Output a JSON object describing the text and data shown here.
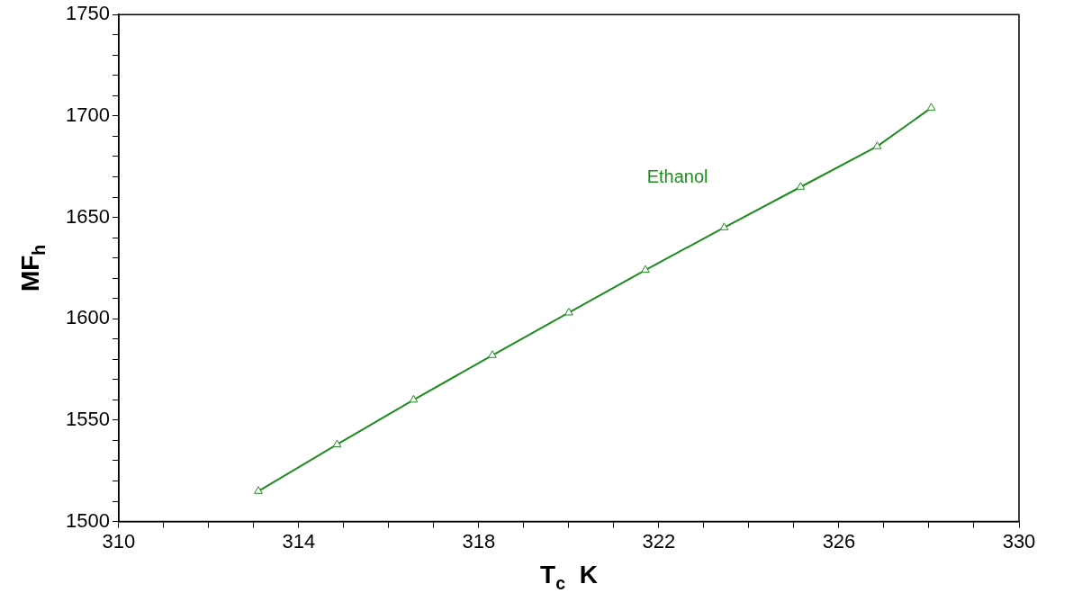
{
  "chart_data": {
    "type": "line",
    "xlabel": "T$_{c}$  K",
    "ylabel": "MF$_{h}$",
    "xlim": [
      310,
      330
    ],
    "xticks": [
      310,
      {
        "value": 311,
        "label": null
      },
      {
        "value": 312,
        "label": null
      },
      {
        "value": 313,
        "label": null
      },
      314,
      {
        "value": 315,
        "label": null
      },
      {
        "value": 316,
        "label": null
      },
      {
        "value": 317,
        "label": null
      },
      318,
      {
        "value": 319,
        "label": null
      },
      {
        "value": 320,
        "label": null
      },
      {
        "value": 321,
        "label": null
      },
      322,
      {
        "value": 323,
        "label": null
      },
      {
        "value": 324,
        "label": null
      },
      {
        "value": 325,
        "label": null
      },
      326,
      {
        "value": 327,
        "label": null
      },
      {
        "value": 328,
        "label": null
      },
      {
        "value": 329,
        "label": null
      },
      330
    ],
    "ylim": [
      1500,
      1750
    ],
    "yticks": [
      1500,
      {
        "value": 1510,
        "label": null
      },
      {
        "value": 1520,
        "label": null
      },
      {
        "value": 1530,
        "label": null
      },
      {
        "value": 1540,
        "label": null
      },
      1550,
      {
        "value": 1560,
        "label": null
      },
      {
        "value": 1570,
        "label": null
      },
      {
        "value": 1580,
        "label": null
      },
      {
        "value": 1590,
        "label": null
      },
      1600,
      {
        "value": 1610,
        "label": null
      },
      {
        "value": 1620,
        "label": null
      },
      {
        "value": 1630,
        "label": null
      },
      {
        "value": 1640,
        "label": null
      },
      1650,
      {
        "value": 1660,
        "label": null
      },
      {
        "value": 1670,
        "label": null
      },
      {
        "value": 1680,
        "label": null
      },
      {
        "value": 1690,
        "label": null
      },
      1700,
      {
        "value": 1710,
        "label": null
      },
      {
        "value": 1720,
        "label": null
      },
      {
        "value": 1730,
        "label": null
      },
      {
        "value": 1740,
        "label": null
      },
      1750
    ],
    "grid": false,
    "legend": false,
    "marker": "triangle",
    "line_style": "solid",
    "series": [
      {
        "name": "Ethanol",
        "color": "#1e8c1e",
        "x": [
          313.1,
          314.85,
          316.55,
          318.3,
          320.0,
          321.7,
          323.45,
          325.15,
          326.85,
          328.05
        ],
        "values": [
          1515,
          1538,
          1560,
          1582,
          1603,
          1624,
          1645,
          1665,
          1685,
          1704
        ]
      }
    ]
  }
}
